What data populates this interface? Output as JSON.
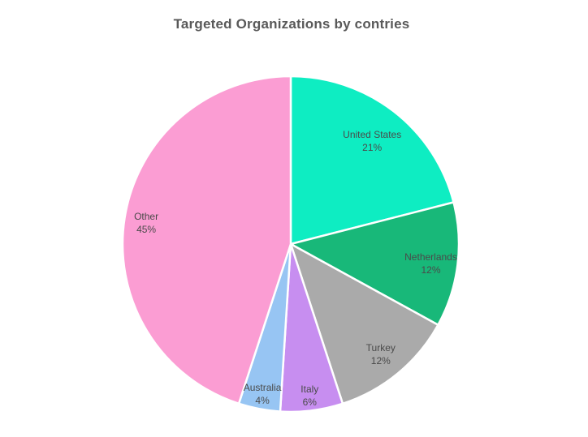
{
  "page": {
    "background_color": "#ffffff"
  },
  "chart_data": {
    "type": "pie",
    "title": "Targeted Organizations by contries",
    "title_color": "#595959",
    "label_color": "#4a4a4a",
    "slice_border_color": "#ffffff",
    "legend": "none",
    "label_position": "inside",
    "start_angle": "top",
    "direction": "clockwise",
    "categories": [
      "United States",
      "Netherlands",
      "Turkey",
      "Italy",
      "Australia",
      "Other"
    ],
    "values": [
      21,
      12,
      12,
      6,
      4,
      45
    ],
    "slices": [
      {
        "label": "United States",
        "value": 21,
        "pct_label": "21%",
        "color": "#0EEDC2"
      },
      {
        "label": "Netherlands",
        "value": 12,
        "pct_label": "12%",
        "color": "#18B879"
      },
      {
        "label": "Turkey",
        "value": 12,
        "pct_label": "12%",
        "color": "#AAAAAA"
      },
      {
        "label": "Italy",
        "value": 6,
        "pct_label": "6%",
        "color": "#C78EF0"
      },
      {
        "label": "Australia",
        "value": 4,
        "pct_label": "4%",
        "color": "#97C5F3"
      },
      {
        "label": "Other",
        "value": 45,
        "pct_label": "45%",
        "color": "#FB9DD3"
      }
    ]
  }
}
